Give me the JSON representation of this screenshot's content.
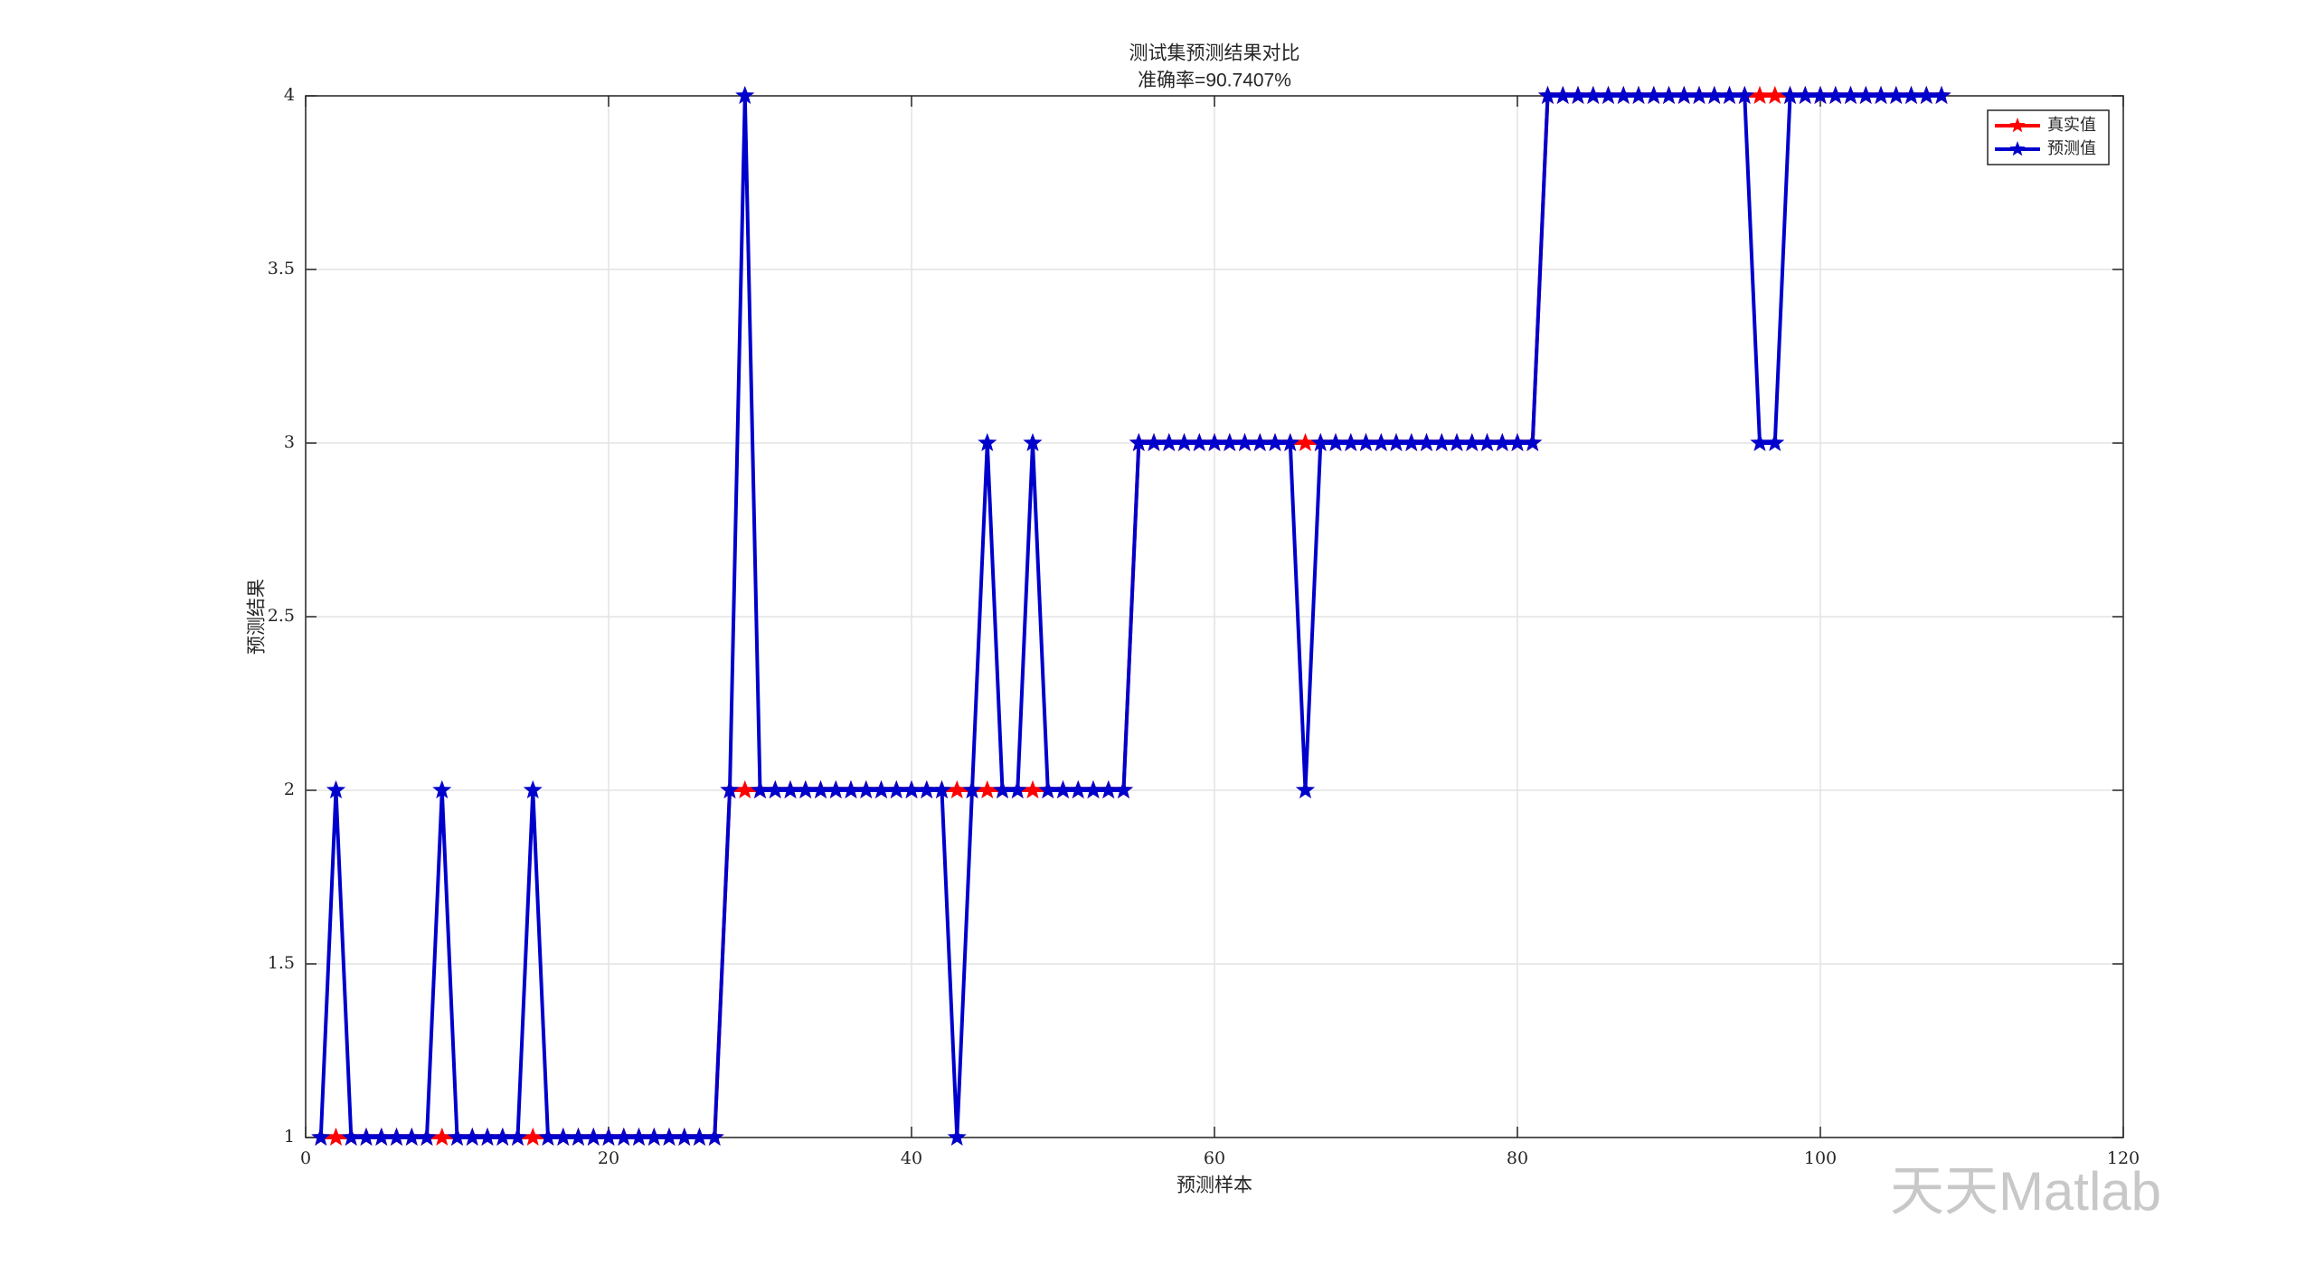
{
  "chart_data": {
    "type": "line",
    "title": "测试集预测结果对比",
    "subtitle": "准确率=90.7407%",
    "xlabel": "预测样本",
    "ylabel": "预测结果",
    "watermark": "天天Matlab",
    "x": [
      1,
      2,
      3,
      4,
      5,
      6,
      7,
      8,
      9,
      10,
      11,
      12,
      13,
      14,
      15,
      16,
      17,
      18,
      19,
      20,
      21,
      22,
      23,
      24,
      25,
      26,
      27,
      28,
      29,
      30,
      31,
      32,
      33,
      34,
      35,
      36,
      37,
      38,
      39,
      40,
      41,
      42,
      43,
      44,
      45,
      46,
      47,
      48,
      49,
      50,
      51,
      52,
      53,
      54,
      55,
      56,
      57,
      58,
      59,
      60,
      61,
      62,
      63,
      64,
      65,
      66,
      67,
      68,
      69,
      70,
      71,
      72,
      73,
      74,
      75,
      76,
      77,
      78,
      79,
      80,
      81,
      82,
      83,
      84,
      85,
      86,
      87,
      88,
      89,
      90,
      91,
      92,
      93,
      94,
      95,
      96,
      97,
      98,
      99,
      100,
      101,
      102,
      103,
      104,
      105,
      106,
      107,
      108
    ],
    "series": [
      {
        "name": "真实值",
        "color": "#ff0000",
        "values": [
          1,
          1,
          1,
          1,
          1,
          1,
          1,
          1,
          1,
          1,
          1,
          1,
          1,
          1,
          1,
          1,
          1,
          1,
          1,
          1,
          1,
          1,
          1,
          1,
          1,
          1,
          1,
          2,
          2,
          2,
          2,
          2,
          2,
          2,
          2,
          2,
          2,
          2,
          2,
          2,
          2,
          2,
          2,
          2,
          2,
          2,
          2,
          2,
          2,
          2,
          2,
          2,
          2,
          2,
          3,
          3,
          3,
          3,
          3,
          3,
          3,
          3,
          3,
          3,
          3,
          3,
          3,
          3,
          3,
          3,
          3,
          3,
          3,
          3,
          3,
          3,
          3,
          3,
          3,
          3,
          3,
          4,
          4,
          4,
          4,
          4,
          4,
          4,
          4,
          4,
          4,
          4,
          4,
          4,
          4,
          4,
          4,
          4,
          4,
          4,
          4,
          4,
          4,
          4,
          4,
          4,
          4,
          4
        ]
      },
      {
        "name": "预测值",
        "color": "#0000cc",
        "values": [
          1,
          2,
          1,
          1,
          1,
          1,
          1,
          1,
          2,
          1,
          1,
          1,
          1,
          1,
          2,
          1,
          1,
          1,
          1,
          1,
          1,
          1,
          1,
          1,
          1,
          1,
          1,
          2,
          4,
          2,
          2,
          2,
          2,
          2,
          2,
          2,
          2,
          2,
          2,
          2,
          2,
          2,
          1,
          2,
          3,
          2,
          2,
          3,
          2,
          2,
          2,
          2,
          2,
          2,
          3,
          3,
          3,
          3,
          3,
          3,
          3,
          3,
          3,
          3,
          3,
          2,
          3,
          3,
          3,
          3,
          3,
          3,
          3,
          3,
          3,
          3,
          3,
          3,
          3,
          3,
          3,
          4,
          4,
          4,
          4,
          4,
          4,
          4,
          4,
          4,
          4,
          4,
          4,
          4,
          4,
          3,
          3,
          4,
          4,
          4,
          4,
          4,
          4,
          4,
          4,
          4,
          4,
          4
        ]
      }
    ],
    "xlim": [
      0,
      120
    ],
    "xticks": [
      0,
      20,
      40,
      60,
      80,
      100,
      120
    ],
    "ylim": [
      1,
      4
    ],
    "yticks": [
      1,
      1.5,
      2,
      2.5,
      3,
      3.5,
      4
    ],
    "grid": true,
    "legend": "northeast"
  }
}
